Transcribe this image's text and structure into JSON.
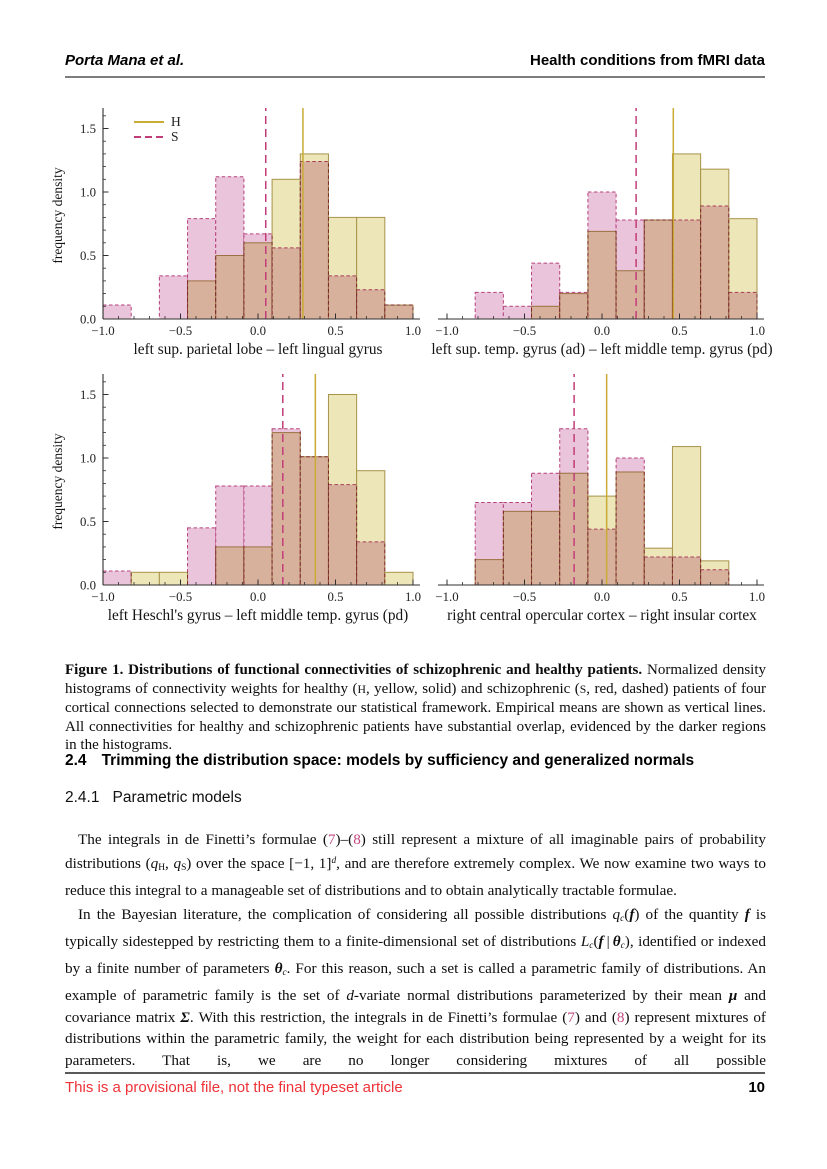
{
  "header": {
    "left": "Porta Mana et al.",
    "right": "Health conditions from fMRI data"
  },
  "figure": {
    "ylabel": "frequency density",
    "yticks": {
      "labels": [
        "0.0",
        "0.5",
        "1.0",
        "1.5"
      ],
      "values": [
        0,
        0.5,
        1.0,
        1.5
      ]
    },
    "xticks": {
      "labels": [
        "−1.0",
        "−0.5",
        "0.0",
        "0.5",
        "1.0"
      ],
      "values": [
        -1,
        -0.5,
        0,
        0.5,
        1
      ]
    },
    "legend": {
      "h_label": "H",
      "s_label": "S"
    },
    "colors": {
      "h_fill": "#ece6b8",
      "h_edge": "#a8934a",
      "h_line": "#c9ab35",
      "s_fill": "#eac4da",
      "s_edge": "#b5417d",
      "s_line": "#c23d78",
      "axis": "#2f2f2f",
      "tick_text": "#222222",
      "label_text": "#141414"
    }
  },
  "chart_data": [
    {
      "type": "histogram",
      "position": "top-left",
      "xlabel": "left sup. parietal lobe – left lingual gyrus",
      "ylabel": "frequency density",
      "xlim": [
        -1,
        1
      ],
      "ylim": [
        0,
        1.63
      ],
      "bins": 11,
      "has_y_axis": true,
      "has_legend": true,
      "series": [
        {
          "name": "H",
          "style": "solid",
          "values": [
            0,
            0,
            0,
            0.3,
            0.5,
            0.6,
            1.1,
            1.3,
            0.8,
            0.8,
            0.11
          ],
          "mean": 0.29
        },
        {
          "name": "S",
          "style": "dashed",
          "values": [
            0.11,
            0,
            0.34,
            0.79,
            1.12,
            0.67,
            0.56,
            1.24,
            0.34,
            0.23,
            0.11
          ],
          "mean": 0.05
        }
      ]
    },
    {
      "type": "histogram",
      "position": "top-right",
      "xlabel": "left sup. temp. gyrus (ad) – left middle temp. gyrus (pd)",
      "xlim": [
        -1,
        1
      ],
      "ylim": [
        0,
        1.63
      ],
      "bins": 11,
      "has_y_axis": false,
      "has_legend": false,
      "series": [
        {
          "name": "H",
          "style": "solid",
          "values": [
            0,
            0,
            0,
            0.1,
            0.2,
            0.69,
            0.38,
            0.78,
            1.3,
            1.18,
            0.79
          ],
          "mean": 0.46
        },
        {
          "name": "S",
          "style": "dashed",
          "values": [
            0,
            0.21,
            0.1,
            0.44,
            0.21,
            1.0,
            0.78,
            0.78,
            0.78,
            0.89,
            0.21
          ],
          "mean": 0.22
        }
      ]
    },
    {
      "type": "histogram",
      "position": "bottom-left",
      "xlabel": "left Heschl's gyrus – left middle temp. gyrus (pd)",
      "ylabel": "frequency density",
      "xlim": [
        -1,
        1
      ],
      "ylim": [
        0,
        1.63
      ],
      "bins": 11,
      "has_y_axis": true,
      "has_legend": false,
      "series": [
        {
          "name": "H",
          "style": "solid",
          "values": [
            0,
            0.1,
            0.1,
            0,
            0.3,
            0.3,
            1.2,
            1.01,
            1.5,
            0.9,
            0.1
          ],
          "mean": 0.37
        },
        {
          "name": "S",
          "style": "dashed",
          "values": [
            0.11,
            0,
            0,
            0.45,
            0.78,
            0.78,
            1.23,
            1.01,
            0.79,
            0.34,
            0
          ],
          "mean": 0.16
        }
      ]
    },
    {
      "type": "histogram",
      "position": "bottom-right",
      "xlabel": "right central opercular cortex – right insular cortex",
      "xlim": [
        -1,
        1
      ],
      "ylim": [
        0,
        1.63
      ],
      "bins": 11,
      "has_y_axis": false,
      "has_legend": false,
      "series": [
        {
          "name": "H",
          "style": "solid",
          "values": [
            0,
            0.2,
            0.58,
            0.58,
            0.88,
            0.7,
            0.89,
            0.29,
            1.09,
            0.19,
            0
          ],
          "mean": 0.03
        },
        {
          "name": "S",
          "style": "dashed",
          "values": [
            0,
            0.65,
            0.65,
            0.88,
            1.23,
            0.44,
            1.0,
            0.22,
            0.22,
            0.12,
            0
          ],
          "mean": -0.18
        }
      ]
    }
  ],
  "caption": {
    "segments": [
      [
        "b",
        "Figure 1.  Distributions of functional connectivities of schizophrenic and healthy patients."
      ],
      [
        "",
        " Normalized density histograms of connectivity weights for healthy ("
      ],
      [
        "sc",
        "H"
      ],
      [
        "",
        ", yellow, solid) and schizophrenic ("
      ],
      [
        "sc",
        "S"
      ],
      [
        "",
        ", red, dashed) patients of four cortical connections selected to demonstrate our statistical framework. Empirical means are shown as vertical lines. All connectivities for healthy and schizophrenic patients have substantial overlap, evidenced by the darker regions in the histograms."
      ]
    ]
  },
  "sections": {
    "s24": {
      "number": "2.4",
      "title": "Trimming the distribution space: models by sufficiency and generalized normals"
    },
    "s241": {
      "number": "2.4.1",
      "title": "Parametric models"
    }
  },
  "paragraphs": [
    {
      "segments": [
        [
          "",
          "The integrals in de Finetti’s formulae ("
        ],
        [
          "link",
          "7"
        ],
        [
          "",
          ")–("
        ],
        [
          "link",
          "8"
        ],
        [
          "",
          ") still represent a mixture of all imaginable pairs of probability distributions ("
        ],
        [
          "i",
          "q"
        ],
        [
          "sub",
          "H"
        ],
        [
          "",
          ", "
        ],
        [
          "i",
          "q"
        ],
        [
          "sub",
          "S"
        ],
        [
          "",
          ") over the space [−1, 1]"
        ],
        [
          "sup i",
          "d"
        ],
        [
          "",
          ", and are therefore extremely complex. We now examine two ways to reduce this integral to a manageable set of distributions and to obtain analytically tractable formulae."
        ]
      ]
    },
    {
      "segments": [
        [
          "",
          "In the Bayesian literature, the complication of considering all possible distributions "
        ],
        [
          "i",
          "q"
        ],
        [
          "sub i",
          "c"
        ],
        [
          "",
          "("
        ],
        [
          "bi",
          "f"
        ],
        [
          "",
          ") of the quantity "
        ],
        [
          "bi",
          "f"
        ],
        [
          "",
          " is typically sidestepped by restricting them to a finite-dimensional set of distributions "
        ],
        [
          "i",
          "L"
        ],
        [
          "sub i",
          "c"
        ],
        [
          "",
          "("
        ],
        [
          "bi",
          "f"
        ],
        [
          "",
          " | "
        ],
        [
          "bi",
          "θ"
        ],
        [
          "sub i",
          "c"
        ],
        [
          "",
          "), identified or indexed by a finite number of parameters "
        ],
        [
          "bi",
          "θ"
        ],
        [
          "sub i",
          "c"
        ],
        [
          "",
          ". For this reason, such a set is called a parametric family of distributions. An example of parametric family is the set of "
        ],
        [
          "i",
          "d"
        ],
        [
          "",
          "-variate normal distributions parameterized by their mean "
        ],
        [
          "bi",
          "μ"
        ],
        [
          "",
          " and covariance matrix "
        ],
        [
          "bi",
          "Σ"
        ],
        [
          "",
          ". With this restriction, the integrals in de Finetti’s formulae ("
        ],
        [
          "link",
          "7"
        ],
        [
          "",
          ") and ("
        ],
        [
          "link",
          "8"
        ],
        [
          "",
          ") represent mixtures of distributions within the parametric family, the weight for each distribution being represented by a weight for its parameters. That is, we are no longer considering mixtures of all possible"
        ]
      ]
    }
  ],
  "footer": {
    "provisional": "This is a provisional file, not the final typeset article",
    "page_number": "10"
  }
}
